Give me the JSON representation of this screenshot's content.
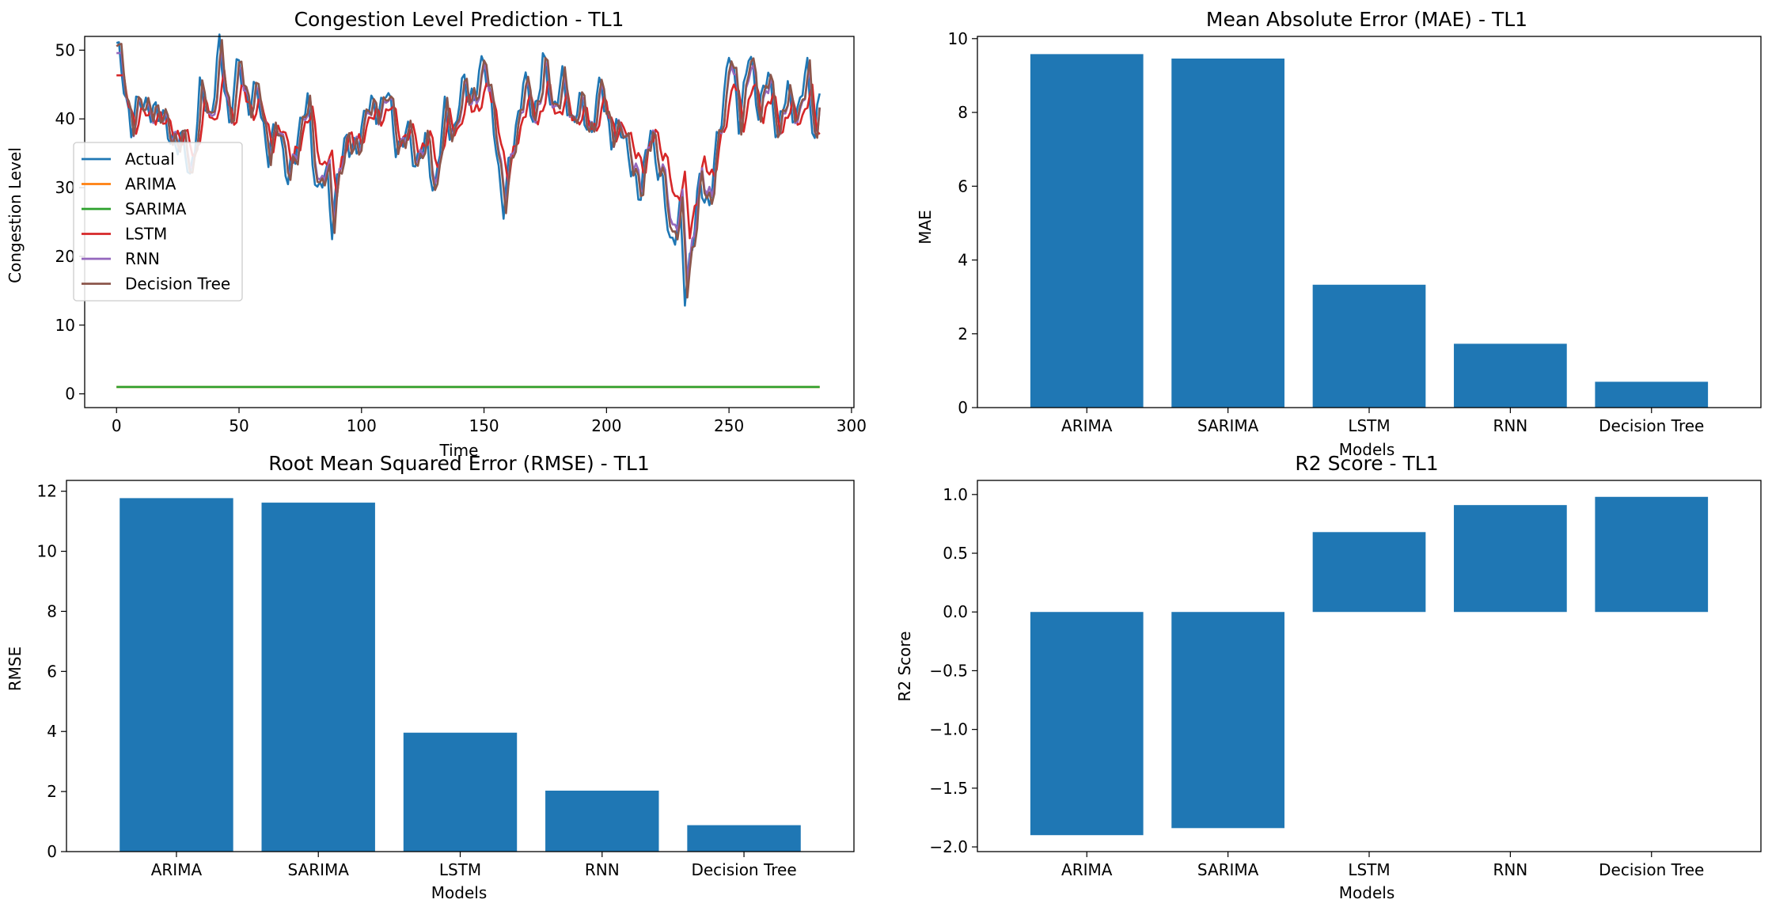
{
  "figure": {
    "background": "#ffffff"
  },
  "chart_data": [
    {
      "id": "line",
      "type": "line",
      "title": "Congestion Level Prediction - TL1",
      "xlabel": "Time",
      "ylabel": "Congestion Level",
      "xlim": [
        -13,
        301
      ],
      "ylim": [
        -2,
        52
      ],
      "xticks": [
        0,
        50,
        100,
        150,
        200,
        250,
        300
      ],
      "yticks": [
        0,
        10,
        20,
        30,
        40,
        50
      ],
      "legend_position": "center-left",
      "series": [
        {
          "name": "Actual",
          "color": "#1f77b4"
        },
        {
          "name": "ARIMA",
          "color": "#ff7f0e"
        },
        {
          "name": "SARIMA",
          "color": "#2ca02c"
        },
        {
          "name": "LSTM",
          "color": "#d62728"
        },
        {
          "name": "RNN",
          "color": "#9467bd"
        },
        {
          "name": "Decision Tree",
          "color": "#8c564b"
        }
      ],
      "actual_knots": {
        "x": [
          0,
          3,
          6,
          10,
          14,
          18,
          22,
          26,
          30,
          34,
          38,
          42,
          46,
          50,
          54,
          58,
          62,
          66,
          70,
          74,
          78,
          82,
          86,
          88,
          90,
          94,
          98,
          102,
          106,
          110,
          114,
          118,
          122,
          126,
          130,
          134,
          138,
          142,
          146,
          150,
          154,
          156,
          158,
          162,
          166,
          170,
          174,
          178,
          182,
          186,
          190,
          194,
          198,
          202,
          206,
          210,
          214,
          218,
          222,
          226,
          230,
          232,
          234,
          238,
          242,
          246,
          250,
          254,
          258,
          262,
          266,
          270,
          274,
          278,
          282,
          285,
          287
        ],
        "y": [
          50,
          46,
          38,
          44,
          40,
          42,
          36,
          38,
          31,
          44,
          40,
          50,
          40,
          48,
          42,
          44,
          34,
          40,
          30,
          38,
          42,
          29,
          32,
          25,
          30,
          38,
          34,
          43,
          40,
          45,
          36,
          38,
          34,
          36,
          30,
          41,
          38,
          46,
          42,
          50,
          38,
          32,
          28,
          36,
          46,
          40,
          48,
          42,
          45,
          40,
          42,
          38,
          46,
          36,
          40,
          32,
          30,
          38,
          32,
          22,
          26,
          14,
          20,
          30,
          28,
          38,
          50,
          40,
          49,
          42,
          46,
          38,
          44,
          40,
          48,
          36,
          44
        ]
      },
      "sarima_value": 1,
      "arima_value": 1,
      "legend_bbox_hint": "center-left"
    },
    {
      "id": "mae",
      "type": "bar",
      "title": "Mean Absolute Error (MAE) - TL1",
      "xlabel": "Models",
      "ylabel": "MAE",
      "categories": [
        "ARIMA",
        "SARIMA",
        "LSTM",
        "RNN",
        "Decision Tree"
      ],
      "values": [
        9.58,
        9.46,
        3.33,
        1.73,
        0.7
      ],
      "ylim": [
        0,
        10.06
      ],
      "yticks": [
        0,
        2,
        4,
        6,
        8,
        10
      ],
      "color": "#1f77b4"
    },
    {
      "id": "rmse",
      "type": "bar",
      "title": "Root Mean Squared Error (RMSE) - TL1",
      "xlabel": "Models",
      "ylabel": "RMSE",
      "categories": [
        "ARIMA",
        "SARIMA",
        "LSTM",
        "RNN",
        "Decision Tree"
      ],
      "values": [
        11.77,
        11.62,
        3.96,
        2.03,
        0.88
      ],
      "ylim": [
        0,
        12.36
      ],
      "yticks": [
        0,
        2,
        4,
        6,
        8,
        10,
        12
      ],
      "color": "#1f77b4"
    },
    {
      "id": "r2",
      "type": "bar",
      "title": "R2 Score - TL1",
      "xlabel": "Models",
      "ylabel": "R2 Score",
      "categories": [
        "ARIMA",
        "SARIMA",
        "LSTM",
        "RNN",
        "Decision Tree"
      ],
      "values": [
        -1.9,
        -1.84,
        0.68,
        0.91,
        0.98
      ],
      "ylim": [
        -2.04,
        1.12
      ],
      "yticks": [
        -2.0,
        -1.5,
        -1.0,
        -0.5,
        0.0,
        0.5,
        1.0
      ],
      "ytick_labels": [
        "−2.0",
        "−1.5",
        "−1.0",
        "−0.5",
        "0.0",
        "0.5",
        "1.0"
      ],
      "color": "#1f77b4"
    }
  ]
}
